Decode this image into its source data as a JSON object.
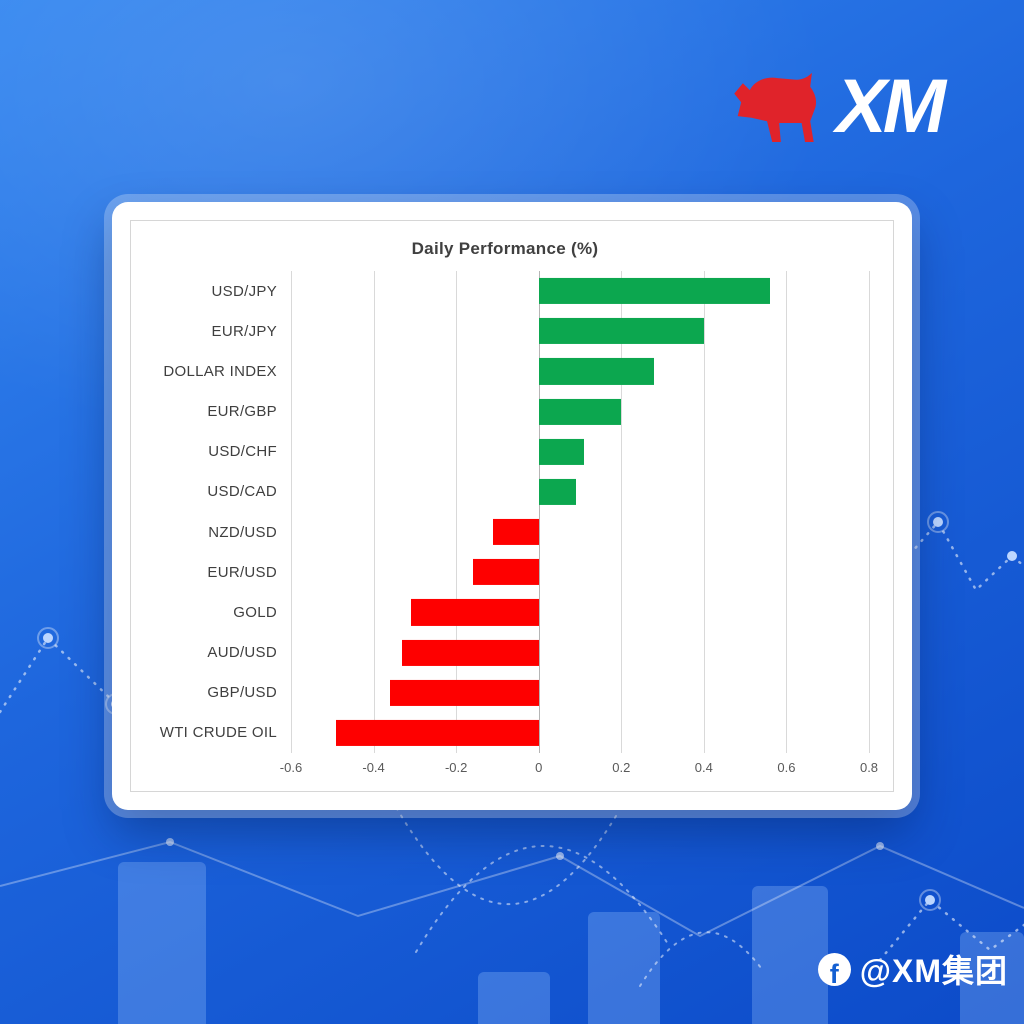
{
  "logo": {
    "text": "XM",
    "bull_icon": "xm-bull-icon"
  },
  "footer": {
    "icon": "facebook-icon",
    "handle": "@XM集团"
  },
  "brand": {
    "red": "#e0232a",
    "background_top": "#3487f0",
    "background_bottom": "#0c4bc9"
  },
  "chart_data": {
    "type": "bar",
    "orientation": "horizontal",
    "title": "Daily Performance (%)",
    "categories": [
      "USD/JPY",
      "EUR/JPY",
      "DOLLAR INDEX",
      "EUR/GBP",
      "USD/CHF",
      "USD/CAD",
      "NZD/USD",
      "EUR/USD",
      "GOLD",
      "AUD/USD",
      "GBP/USD",
      "WTI CRUDE OIL"
    ],
    "values": [
      0.56,
      0.4,
      0.28,
      0.2,
      0.11,
      0.09,
      -0.11,
      -0.16,
      -0.31,
      -0.33,
      -0.36,
      -0.49
    ],
    "xlim": [
      -0.6,
      0.8
    ],
    "xticks": [
      -0.6,
      -0.4,
      -0.2,
      0,
      0.2,
      0.4,
      0.6,
      0.8
    ],
    "positive_color": "#0ca74f",
    "negative_color": "#fe0000",
    "grid": true,
    "legend": false,
    "gridline_color": "#d9d9d9",
    "label_color": "#3f3f3f",
    "tick_color": "#595959"
  }
}
